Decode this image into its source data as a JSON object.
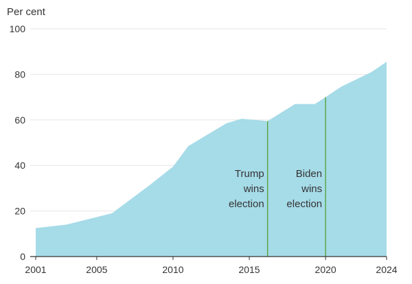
{
  "chart_data": {
    "type": "area",
    "ylabel": "Per cent",
    "xlim": [
      2001,
      2024
    ],
    "ylim": [
      0,
      100
    ],
    "x_ticks": [
      2001,
      2005,
      2010,
      2015,
      2020,
      2024
    ],
    "y_ticks": [
      0,
      20,
      40,
      60,
      80,
      100
    ],
    "grid": "horizontal",
    "series": [
      {
        "x": [
          2001,
          2003,
          2006,
          2008.5,
          2010,
          2011,
          2013.5,
          2014.5,
          2016.2,
          2018,
          2019.3,
          2020,
          2021,
          2023,
          2024
        ],
        "y": [
          12.5,
          14,
          19,
          31.5,
          39.5,
          48.5,
          58.5,
          60.5,
          59.5,
          67,
          67,
          70,
          74.5,
          81,
          85.5
        ],
        "color": "#a6dbe8"
      }
    ],
    "annotations": [
      {
        "x": 2016.2,
        "lines": [
          "Trump",
          "wins",
          "election"
        ]
      },
      {
        "x": 2020.0,
        "lines": [
          "Biden",
          "wins",
          "election"
        ]
      }
    ],
    "marker_color": "#4fa02f",
    "axis_color": "#333333",
    "grid_color": "#e6e6e6"
  }
}
